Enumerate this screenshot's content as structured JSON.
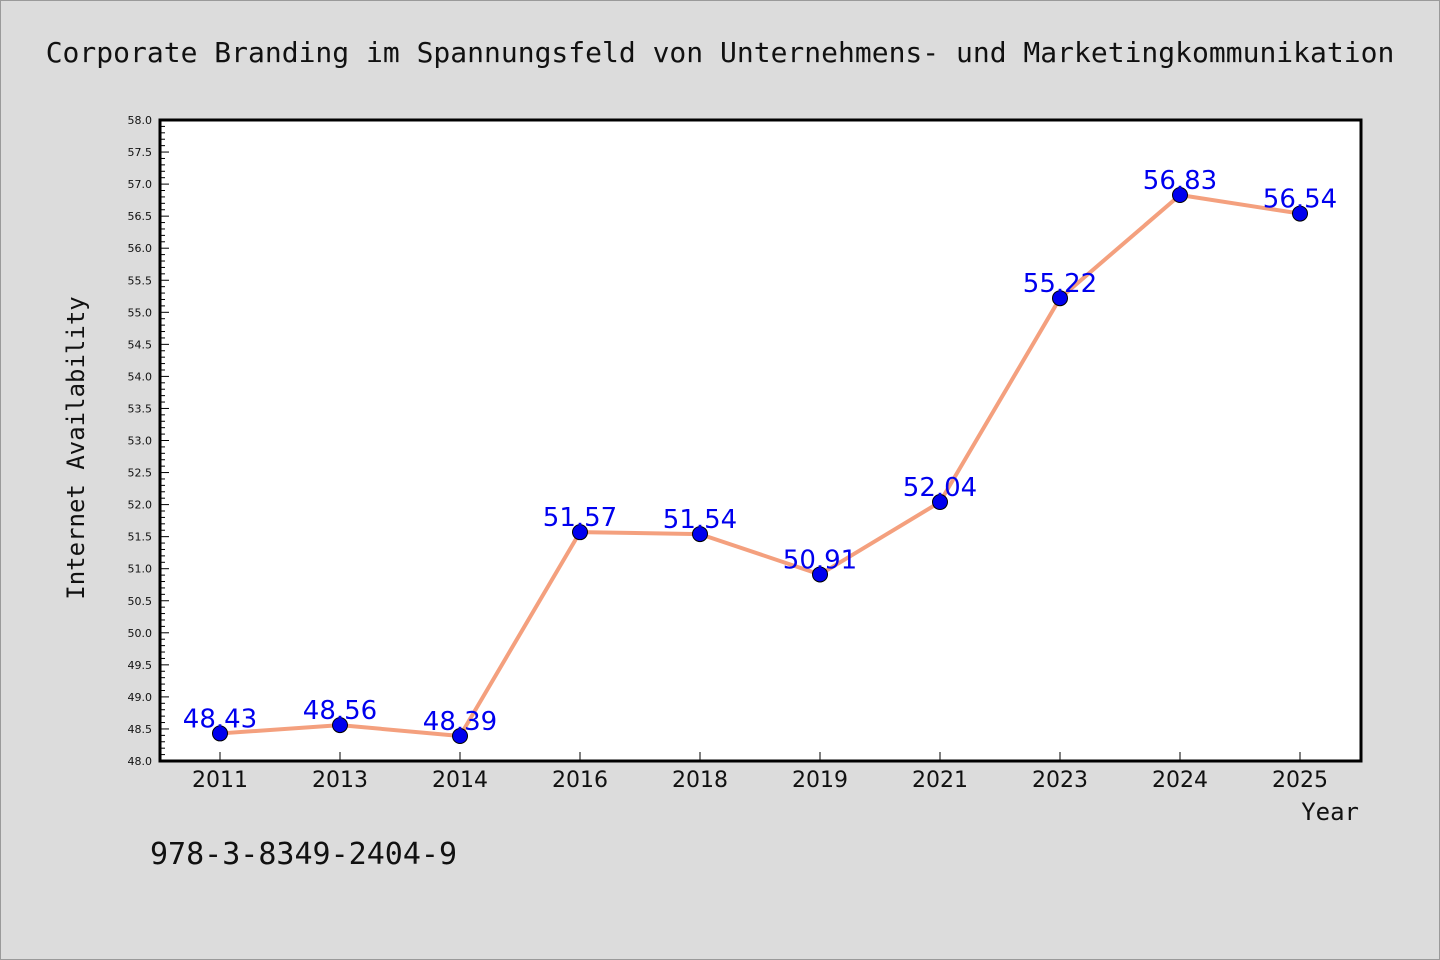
{
  "chart_data": {
    "type": "line",
    "title": "Corporate Branding im Spannungsfeld von Unternehmens- und Marketingkommunikation",
    "xlabel": "Year",
    "ylabel": "Internet Availability",
    "categories": [
      "2011",
      "2013",
      "2014",
      "2016",
      "2018",
      "2019",
      "2021",
      "2023",
      "2024",
      "2025"
    ],
    "values": [
      48.43,
      48.56,
      48.39,
      51.57,
      51.54,
      50.91,
      52.04,
      55.22,
      56.83,
      56.54
    ],
    "data_labels": [
      "48.43",
      "48.56",
      "48.39",
      "51.57",
      "51.54",
      "50.91",
      "52.04",
      "55.22",
      "56.83",
      "56.54"
    ],
    "ylim": [
      48.0,
      58.0
    ],
    "yticks": [
      "48.0",
      "48.5",
      "49.0",
      "49.5",
      "50.0",
      "50.5",
      "51.0",
      "51.5",
      "52.0",
      "52.5",
      "53.0",
      "53.5",
      "54.0",
      "54.5",
      "55.0",
      "55.5",
      "56.0",
      "56.5",
      "57.0",
      "57.5",
      "58.0"
    ],
    "grid": false,
    "line_color": "#f4a07e",
    "marker_color": "#0000ee",
    "label_color": "#0000ee"
  },
  "footer": {
    "isbn": "978-3-8349-2404-9"
  }
}
